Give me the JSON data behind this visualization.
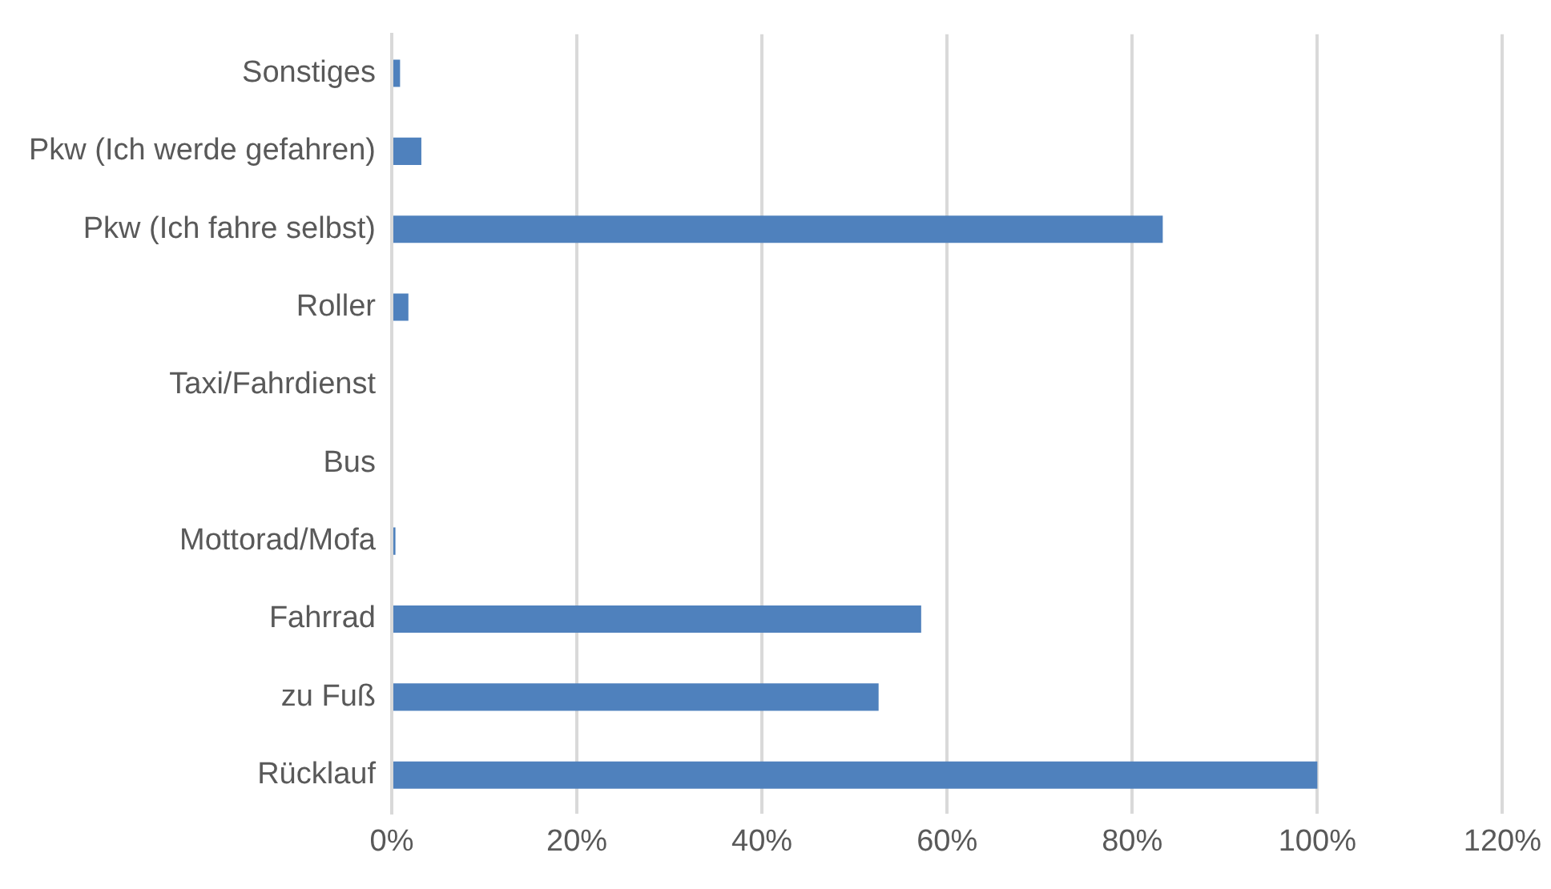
{
  "chart_data": {
    "type": "bar",
    "orientation": "horizontal",
    "categories": [
      "Sonstiges",
      "Pkw (Ich werde gefahren)",
      "Pkw (Ich fahre selbst)",
      "Roller",
      "Taxi/Fahrdienst",
      "Bus",
      "Mottorad/Mofa",
      "Fahrrad",
      "zu Fuß",
      "Rücklauf"
    ],
    "values": [
      0.9,
      3.2,
      83.3,
      1.8,
      0,
      0,
      0.4,
      57.2,
      52.6,
      100
    ],
    "color": "#4f81bd",
    "xlim": [
      0,
      120
    ],
    "xticks": [
      {
        "value": 0,
        "label": "0%"
      },
      {
        "value": 20,
        "label": "20%"
      },
      {
        "value": 40,
        "label": "40%"
      },
      {
        "value": 60,
        "label": "60%"
      },
      {
        "value": 80,
        "label": "80%"
      },
      {
        "value": 100,
        "label": "100%"
      },
      {
        "value": 120,
        "label": "120%"
      }
    ],
    "grid": "x",
    "legend": false
  }
}
